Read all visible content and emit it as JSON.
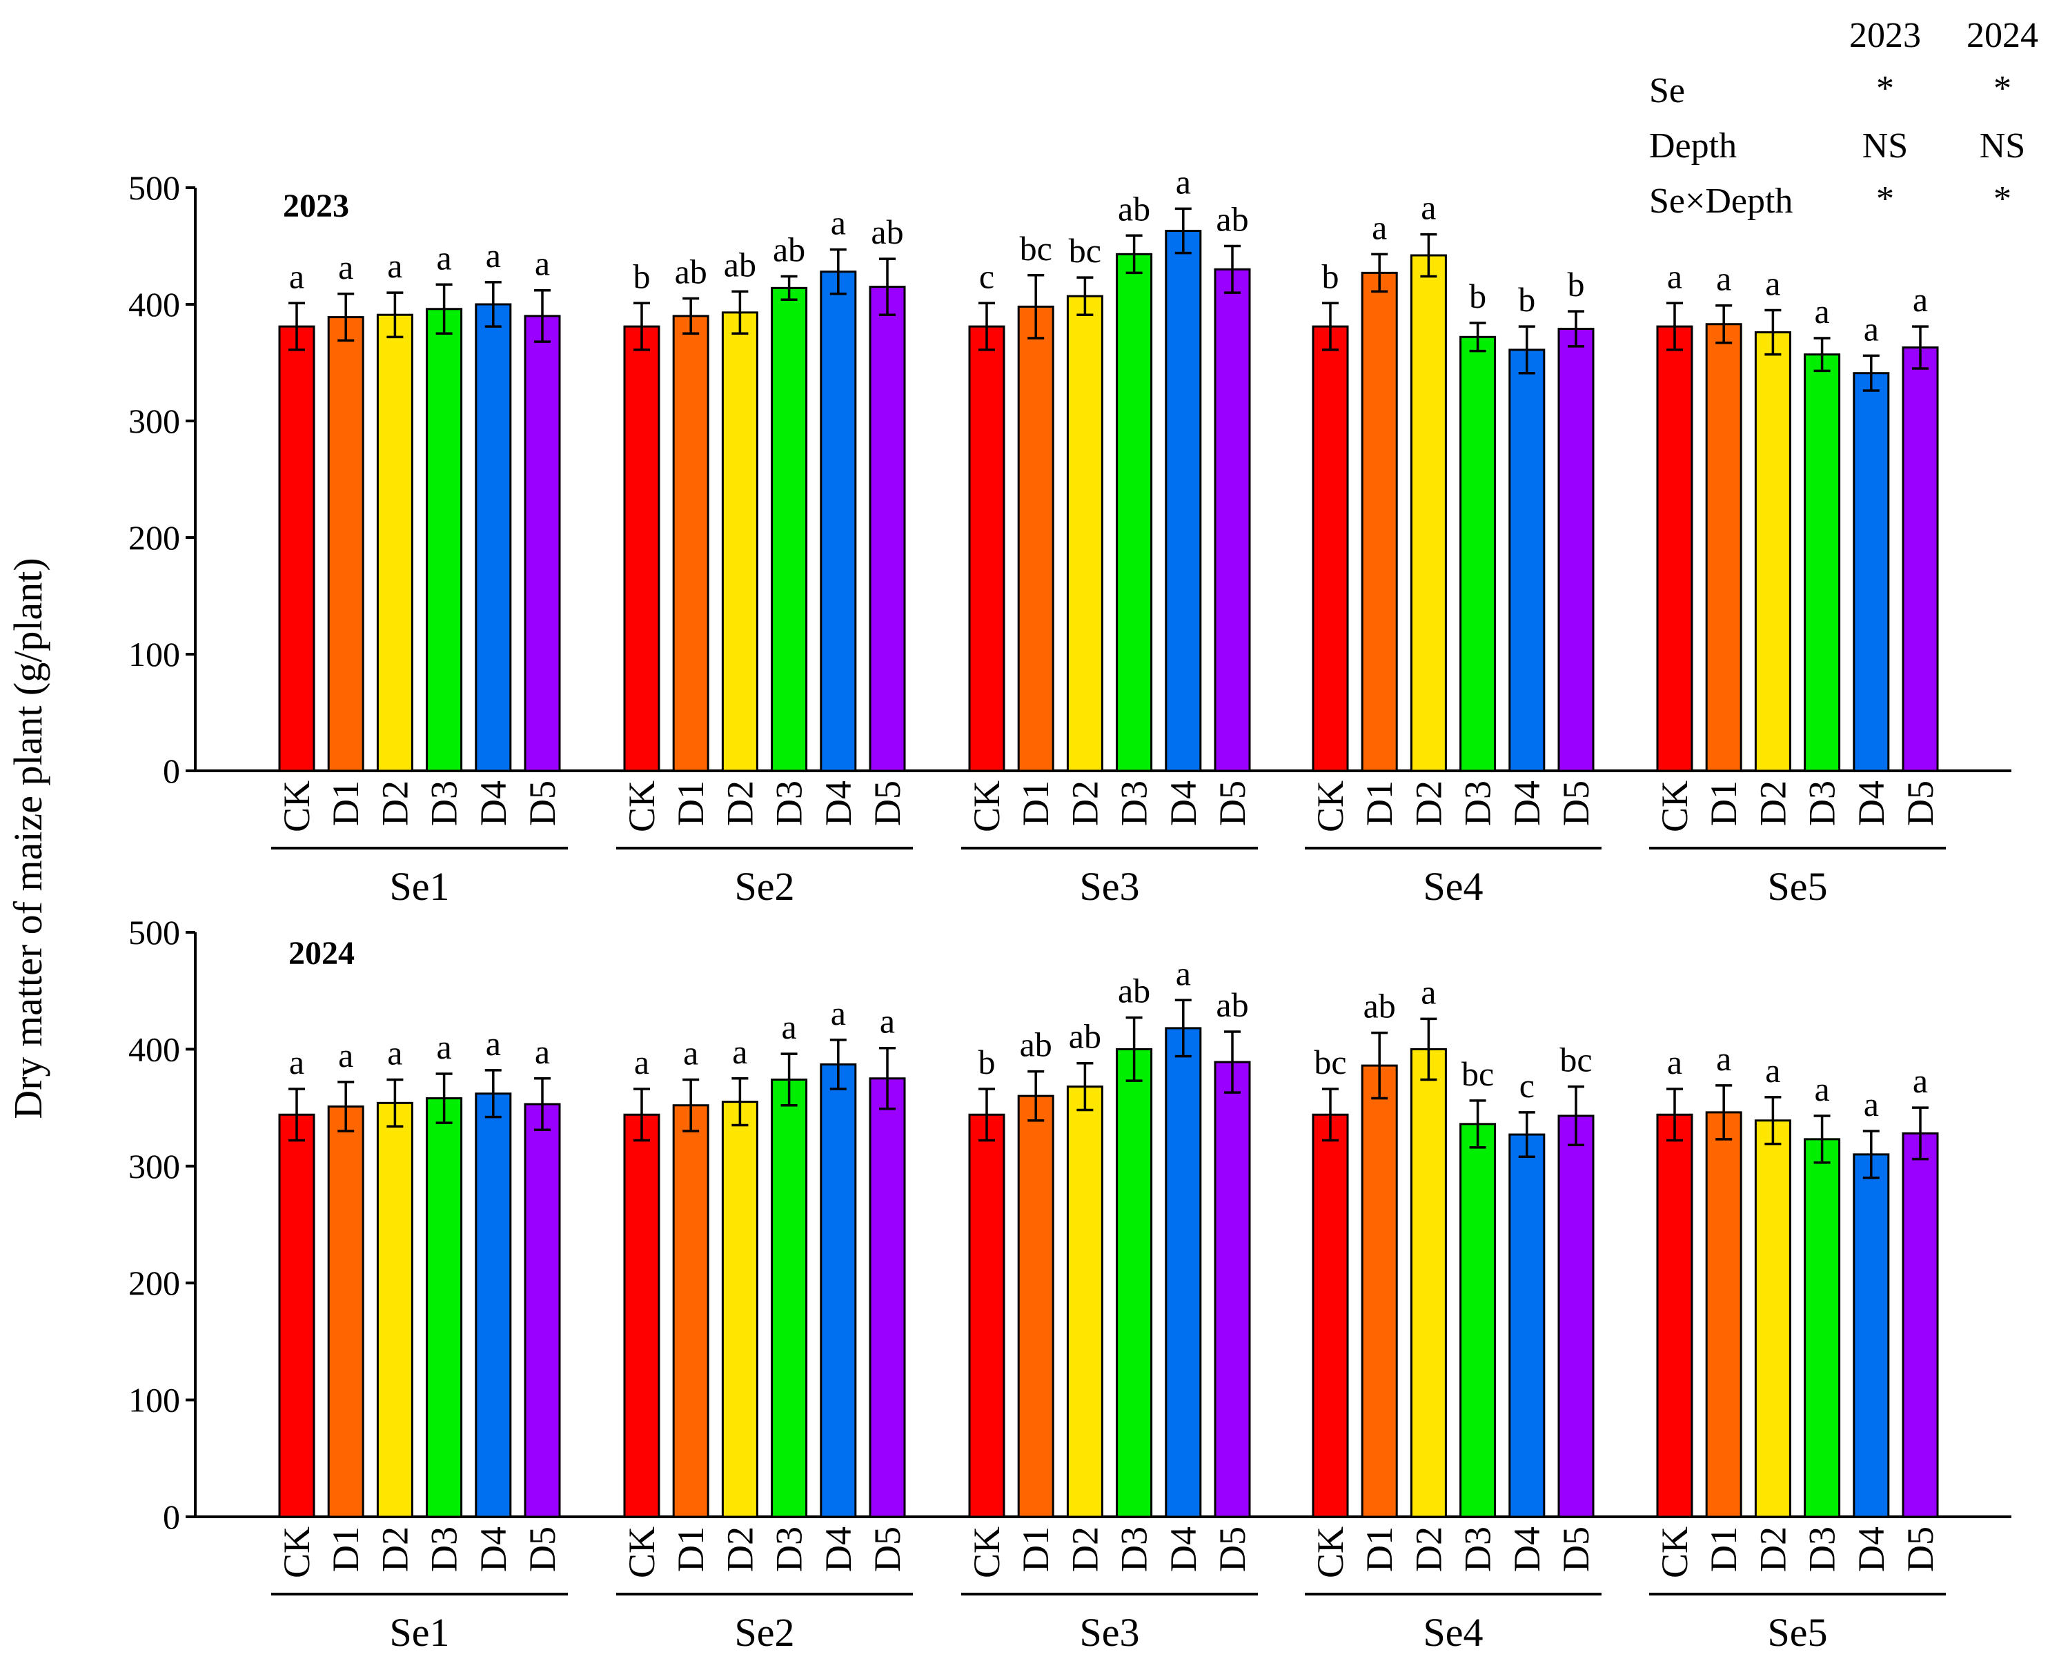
{
  "figure": {
    "ylabel": "Dry matter of maize plant (g/plant)",
    "categories": [
      "CK",
      "D1",
      "D2",
      "D3",
      "D4",
      "D5"
    ],
    "groups": [
      "Se1",
      "Se2",
      "Se3",
      "Se4",
      "Se5"
    ],
    "colors": [
      "#ff0000",
      "#ff6600",
      "#ffe600",
      "#00ee00",
      "#0070f0",
      "#9900ff"
    ]
  },
  "stats_table": {
    "years": [
      "2023",
      "2024"
    ],
    "rows": [
      {
        "factor": "Se",
        "values": [
          "*",
          "*"
        ]
      },
      {
        "factor": "Depth",
        "values": [
          "NS",
          "NS"
        ]
      },
      {
        "factor": "Se×Depth",
        "values": [
          "*",
          "*"
        ]
      }
    ]
  },
  "chart_data": [
    {
      "type": "bar",
      "title": "2023",
      "ylabel": "Dry matter of maize plant (g/plant)",
      "ylim": [
        0,
        500
      ],
      "yticks": [
        0,
        100,
        200,
        300,
        400,
        500
      ],
      "categories": [
        "CK",
        "D1",
        "D2",
        "D3",
        "D4",
        "D5"
      ],
      "groups": [
        {
          "name": "Se1",
          "values": [
            381,
            389,
            391,
            396,
            400,
            390
          ],
          "errors": [
            20,
            20,
            19,
            21,
            19,
            22
          ],
          "letters": [
            "a",
            "a",
            "a",
            "a",
            "a",
            "a"
          ]
        },
        {
          "name": "Se2",
          "values": [
            381,
            390,
            393,
            414,
            428,
            415
          ],
          "errors": [
            20,
            15,
            18,
            10,
            19,
            24
          ],
          "letters": [
            "b",
            "ab",
            "ab",
            "ab",
            "a",
            "ab"
          ]
        },
        {
          "name": "Se3",
          "values": [
            381,
            398,
            407,
            443,
            463,
            430
          ],
          "errors": [
            20,
            27,
            16,
            16,
            19,
            20
          ],
          "letters": [
            "c",
            "bc",
            "bc",
            "ab",
            "a",
            "ab"
          ]
        },
        {
          "name": "Se4",
          "values": [
            381,
            427,
            442,
            372,
            361,
            379
          ],
          "errors": [
            20,
            16,
            18,
            12,
            20,
            15
          ],
          "letters": [
            "b",
            "a",
            "a",
            "b",
            "b",
            "b"
          ]
        },
        {
          "name": "Se5",
          "values": [
            381,
            383,
            376,
            357,
            341,
            363
          ],
          "errors": [
            20,
            16,
            19,
            14,
            15,
            18
          ],
          "letters": [
            "a",
            "a",
            "a",
            "a",
            "a",
            "a"
          ]
        }
      ]
    },
    {
      "type": "bar",
      "title": "2024",
      "ylabel": "Dry matter of maize plant (g/plant)",
      "ylim": [
        0,
        500
      ],
      "yticks": [
        0,
        100,
        200,
        300,
        400,
        500
      ],
      "categories": [
        "CK",
        "D1",
        "D2",
        "D3",
        "D4",
        "D5"
      ],
      "groups": [
        {
          "name": "Se1",
          "values": [
            344,
            351,
            354,
            358,
            362,
            353
          ],
          "errors": [
            22,
            21,
            20,
            21,
            20,
            22
          ],
          "letters": [
            "a",
            "a",
            "a",
            "a",
            "a",
            "a"
          ]
        },
        {
          "name": "Se2",
          "values": [
            344,
            352,
            355,
            374,
            387,
            375
          ],
          "errors": [
            22,
            22,
            20,
            22,
            21,
            26
          ],
          "letters": [
            "a",
            "a",
            "a",
            "a",
            "a",
            "a"
          ]
        },
        {
          "name": "Se3",
          "values": [
            344,
            360,
            368,
            400,
            418,
            389
          ],
          "errors": [
            22,
            21,
            20,
            27,
            24,
            26
          ],
          "letters": [
            "b",
            "ab",
            "ab",
            "ab",
            "a",
            "ab"
          ]
        },
        {
          "name": "Se4",
          "values": [
            344,
            386,
            400,
            336,
            327,
            343
          ],
          "errors": [
            22,
            28,
            26,
            20,
            19,
            25
          ],
          "letters": [
            "bc",
            "ab",
            "a",
            "bc",
            "c",
            "bc"
          ]
        },
        {
          "name": "Se5",
          "values": [
            344,
            346,
            339,
            323,
            310,
            328
          ],
          "errors": [
            22,
            23,
            20,
            20,
            20,
            22
          ],
          "letters": [
            "a",
            "a",
            "a",
            "a",
            "a",
            "a"
          ]
        }
      ]
    }
  ]
}
